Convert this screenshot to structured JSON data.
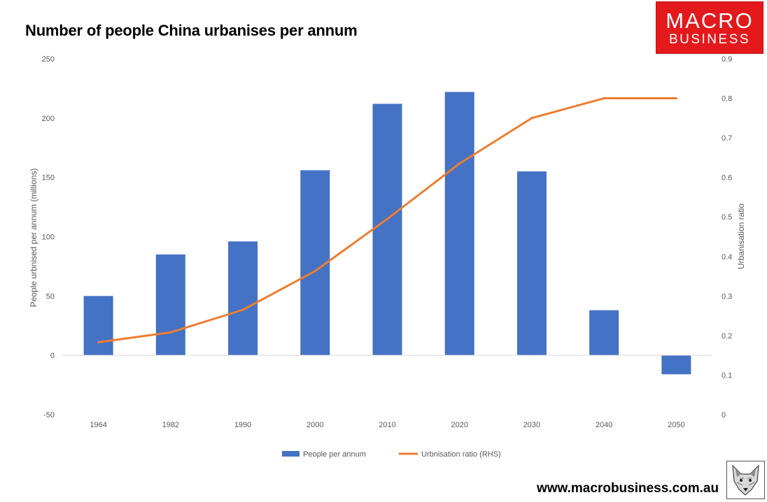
{
  "chart_data": {
    "type": "bar",
    "title": "Number of people China urbanises per annum",
    "categories": [
      "1964",
      "1982",
      "1990",
      "2000",
      "2010",
      "2020",
      "2030",
      "2040",
      "2050"
    ],
    "series": [
      {
        "name": "People per annum",
        "type": "bar",
        "axis": "left",
        "color": "#4472c4",
        "values": [
          50,
          85,
          96,
          156,
          212,
          222,
          155,
          38,
          -16
        ]
      },
      {
        "name": "Urbnisation ratio (RHS)",
        "type": "line",
        "axis": "right",
        "color": "#ed7d31",
        "values": [
          0.183,
          0.208,
          0.265,
          0.363,
          0.495,
          0.635,
          0.75,
          0.8,
          0.8
        ]
      }
    ],
    "ylabel": "People urbnised per annum (millions)",
    "y2label": "Urbanisation ratio",
    "ylim": [
      -50,
      250
    ],
    "y2lim": [
      0,
      0.9
    ],
    "yticks": [
      "-50",
      "0",
      "50",
      "100",
      "150",
      "200",
      "250"
    ],
    "y2ticks": [
      "0",
      "0.1",
      "0.2",
      "0.3",
      "0.4",
      "0.5",
      "0.6",
      "0.7",
      "0.8",
      "0.9"
    ],
    "grid": false,
    "legend": "bottom"
  },
  "branding": {
    "logo_line1": "MACRO",
    "logo_line2": "BUSINESS",
    "url": "www.macrobusiness.com.au"
  },
  "icons": {
    "fox": "fox-logo-icon"
  }
}
